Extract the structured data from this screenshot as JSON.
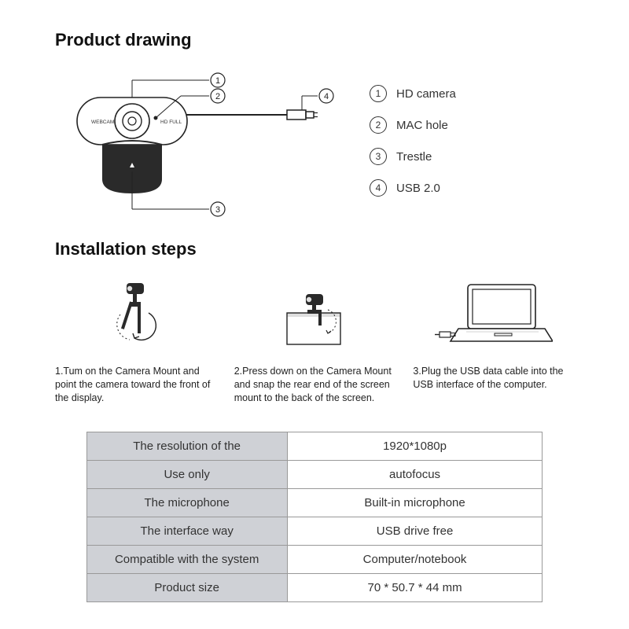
{
  "colors": {
    "text": "#1a1a1a",
    "stroke": "#222222",
    "fill_dark": "#2a2a2a",
    "table_label_bg": "#cfd1d6",
    "border": "#999999"
  },
  "headings": {
    "drawing": "Product drawing",
    "install": "Installation steps"
  },
  "drawing": {
    "webcam_label_left": "WEBCAM",
    "webcam_label_right": "HD FULL",
    "callouts": [
      {
        "num": "1",
        "label": "HD camera"
      },
      {
        "num": "2",
        "label": "MAC hole"
      },
      {
        "num": "3",
        "label": "Trestle"
      },
      {
        "num": "4",
        "label": "USB 2.0"
      }
    ]
  },
  "steps": [
    {
      "caption": "1.Tum on the Camera Mount and point the camera toward the front of the display."
    },
    {
      "caption": "2.Press down on the Camera Mount and snap the rear end of the screen mount to the back of the screen."
    },
    {
      "caption": "3.Plug the USB data cable into the USB interface of the computer."
    }
  ],
  "specs": {
    "rows": [
      {
        "label": "The resolution of the",
        "value": "1920*1080p"
      },
      {
        "label": "Use only",
        "value": "autofocus"
      },
      {
        "label": "The microphone",
        "value": "Built-in microphone"
      },
      {
        "label": "The interface way",
        "value": "USB drive free"
      },
      {
        "label": "Compatible with the system",
        "value": "Computer/notebook"
      },
      {
        "label": "Product size",
        "value": "70 * 50.7 * 44 mm"
      }
    ]
  }
}
